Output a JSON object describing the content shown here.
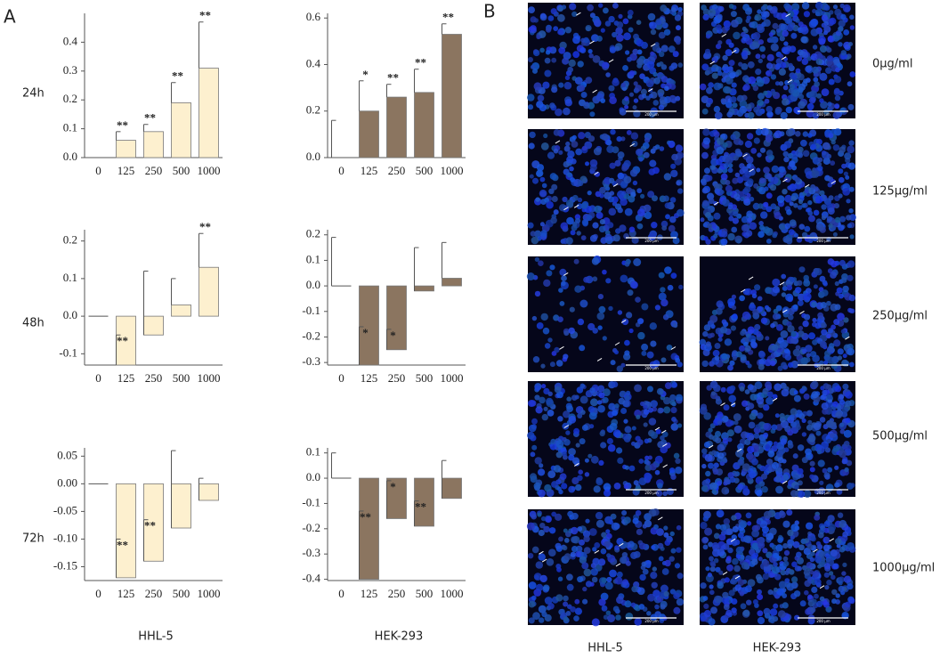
{
  "chart_data": [
    {
      "type": "bar",
      "categories": [
        "0",
        "125",
        "250",
        "500",
        "1000"
      ],
      "values": [
        0,
        0.06,
        0.09,
        0.19,
        0.31
      ],
      "errors": [
        0,
        0.03,
        0.025,
        0.07,
        0.16
      ],
      "annotations": [
        null,
        "**",
        "**",
        "**",
        "**"
      ],
      "color": "#fdf0cf",
      "ylim": [
        0,
        0.5
      ],
      "yticks": [
        {
          "value": 0,
          "label": "0.0"
        },
        0.1,
        0.2,
        0.3,
        0.4
      ]
    },
    {
      "type": "bar",
      "categories": [
        "0",
        "125",
        "250",
        "500",
        "1000"
      ],
      "values": [
        0,
        0.2,
        0.26,
        0.28,
        0.53
      ],
      "errors": [
        0.16,
        0.13,
        0.055,
        0.1,
        0.045
      ],
      "annotations": [
        null,
        "*",
        "**",
        "**",
        "**"
      ],
      "color": "#8b7560",
      "ylim": [
        0,
        0.62
      ],
      "yticks": [
        {
          "value": 0,
          "label": "0.0"
        },
        0.2,
        0.4,
        0.6
      ]
    },
    {
      "type": "bar",
      "categories": [
        "0",
        "125",
        "250",
        "500",
        "1000"
      ],
      "values": [
        0,
        -0.13,
        -0.05,
        0.03,
        0.13
      ],
      "errors": [
        0,
        0.08,
        0.17,
        0.07,
        0.09
      ],
      "annotations": [
        null,
        "**",
        null,
        null,
        "**"
      ],
      "color": "#fdf0cf",
      "ylim": [
        -0.13,
        0.23
      ],
      "yticks": [
        -0.1,
        {
          "value": 0,
          "label": "0.0"
        },
        0.1,
        0.2
      ]
    },
    {
      "type": "bar",
      "categories": [
        "0",
        "125",
        "250",
        "500",
        "1000"
      ],
      "values": [
        0,
        -0.31,
        -0.25,
        -0.02,
        0.03
      ],
      "errors": [
        0.19,
        0.15,
        0.08,
        0.17,
        0.14
      ],
      "annotations": [
        null,
        "*",
        "*",
        null,
        null
      ],
      "color": "#8b7560",
      "ylim": [
        -0.31,
        0.22
      ],
      "yticks": [
        -0.3,
        -0.2,
        -0.1,
        {
          "value": 0,
          "label": "0.0"
        },
        0.1,
        0.2
      ]
    },
    {
      "type": "bar",
      "categories": [
        "0",
        "125",
        "250",
        "500",
        "1000"
      ],
      "values": [
        0,
        -0.17,
        -0.14,
        -0.08,
        -0.03
      ],
      "errors": [
        0,
        0.07,
        0.075,
        0.14,
        0.04
      ],
      "annotations": [
        null,
        "**",
        "**",
        null,
        null
      ],
      "color": "#fdf0cf",
      "ylim": [
        -0.175,
        0.065
      ],
      "yticks": [
        -0.15,
        {
          "value": -0.1,
          "label": "-0.10"
        },
        -0.05,
        {
          "value": 0,
          "label": "0.00"
        },
        0.05
      ]
    },
    {
      "type": "bar",
      "categories": [
        "0",
        "125",
        "250",
        "500",
        "1000"
      ],
      "values": [
        0,
        -0.4,
        -0.16,
        -0.19,
        -0.08
      ],
      "errors": [
        0.1,
        0.27,
        0.15,
        0.1,
        0.15
      ],
      "annotations": [
        null,
        "**",
        "*",
        "**",
        null
      ],
      "color": "#8b7560",
      "ylim": [
        -0.405,
        0.12
      ],
      "yticks": [
        -0.4,
        -0.3,
        -0.2,
        -0.1,
        {
          "value": 0,
          "label": "0.0"
        },
        0.1
      ]
    }
  ],
  "panel_a": {
    "label": "A",
    "row_labels": [
      "24h",
      "48h",
      "72h"
    ],
    "column_labels": [
      "HHL-5",
      "HEK-293"
    ]
  },
  "panel_b": {
    "label": "B",
    "row_labels": [
      "0μg/ml",
      "125μg/ml",
      "250μg/ml",
      "500μg/ml",
      "1000μg/ml"
    ],
    "column_labels": [
      "HHL-5",
      "HEK-293"
    ],
    "scale_bar": "200 μm"
  }
}
